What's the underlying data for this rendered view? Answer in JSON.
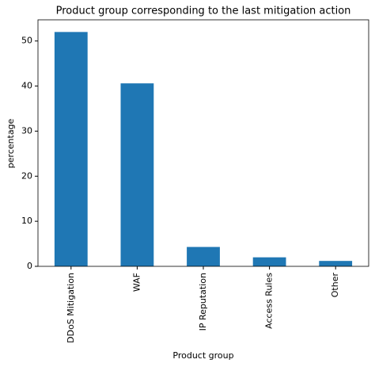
{
  "chart_data": {
    "type": "bar",
    "title": "Product group corresponding to the last mitigation action",
    "xlabel": "Product group",
    "ylabel": "percentage",
    "categories": [
      "DDoS Mitigation",
      "WAF",
      "IP Reputation",
      "Access Rules",
      "Other"
    ],
    "values": [
      52,
      40.6,
      4.3,
      2.0,
      1.2
    ],
    "color": "#1f77b4",
    "ylim": [
      0,
      54.7
    ],
    "yticks": [
      0,
      10,
      20,
      30,
      40,
      50
    ],
    "grid": false
  }
}
